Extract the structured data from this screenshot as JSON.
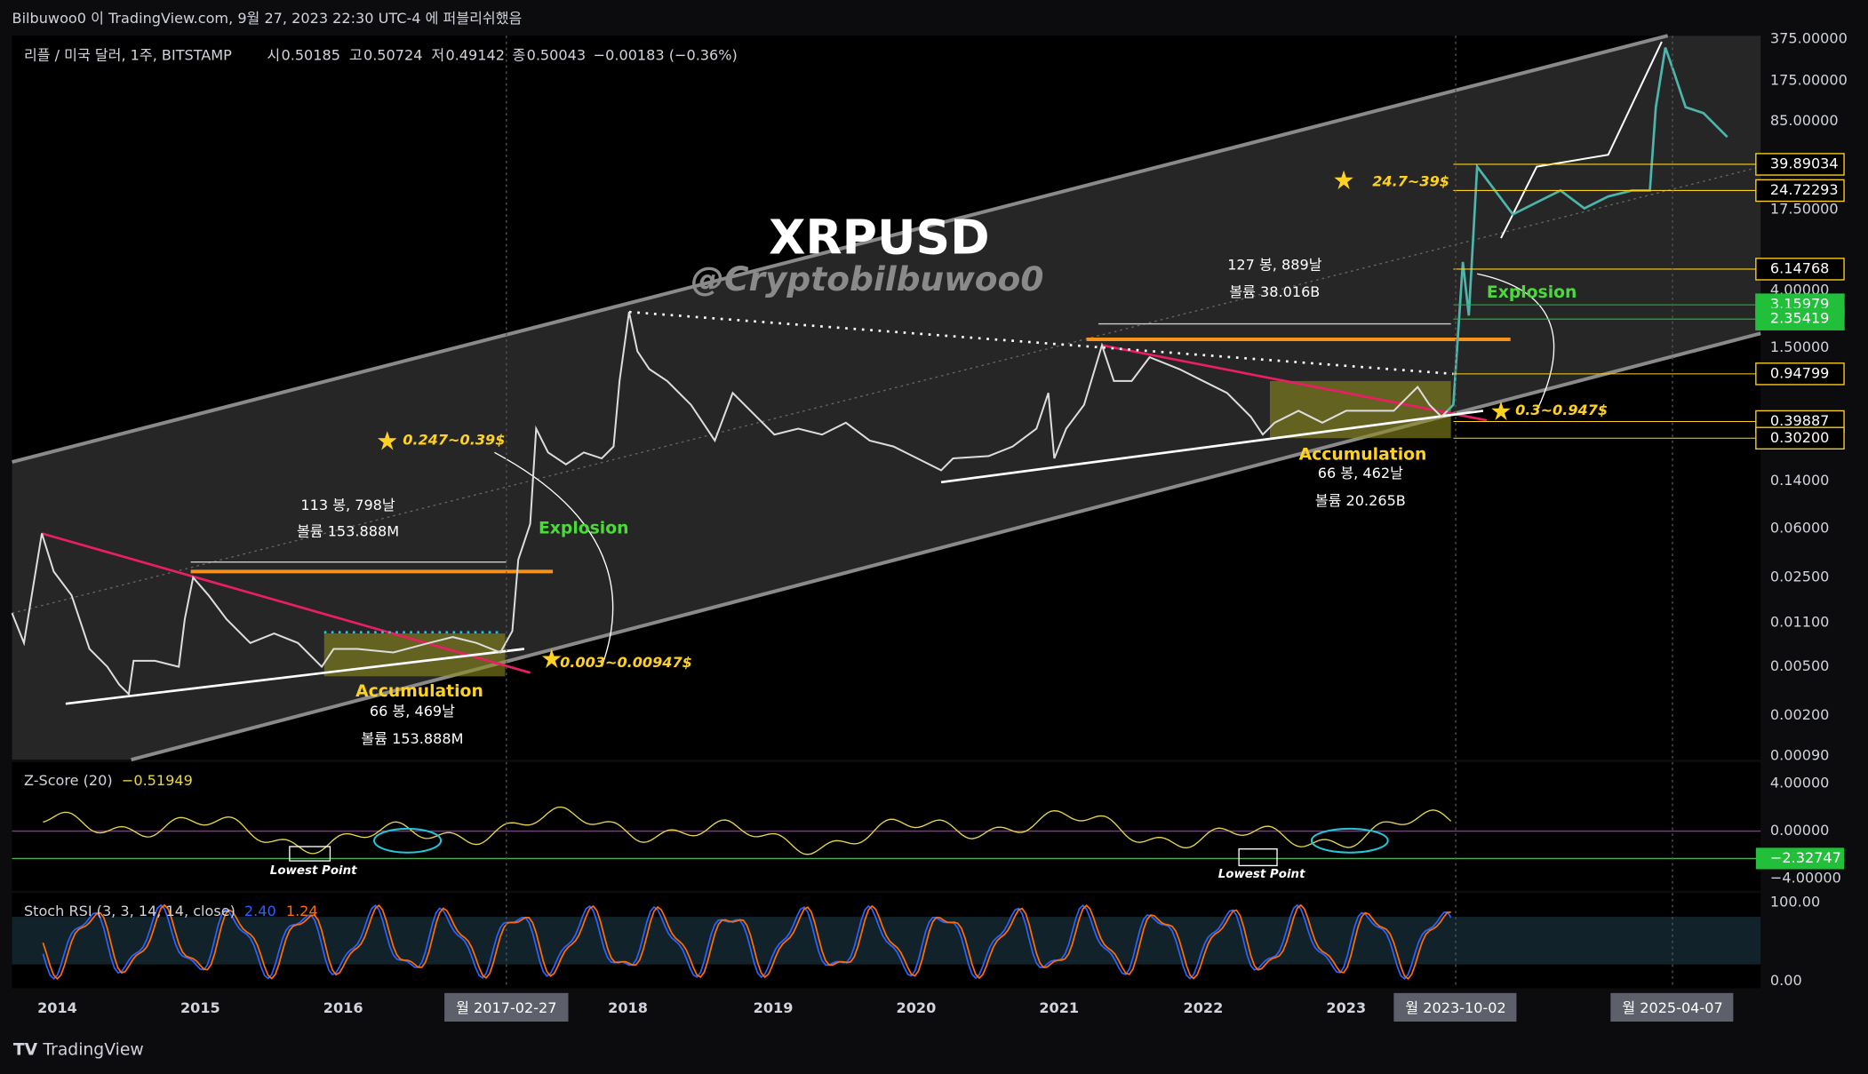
{
  "header": {
    "published": "Bilbuwoo0 이 TradingView.com, 9월 27, 2023 22:30 UTC-4 에 퍼블리쉬했음"
  },
  "legend": {
    "symbol": "리플 / 미국 달러, 1주, BITSTAMP",
    "open_label": "시",
    "open": "0.50185",
    "high_label": "고",
    "high": "0.50724",
    "low_label": "저",
    "low": "0.49142",
    "close_label": "종",
    "close": "0.50043",
    "change": "−0.00183 (−0.36%)"
  },
  "title": "XRPUSD",
  "watermark": "@Cryptobilbuwoo0",
  "price_axis": [
    "375.00000",
    "175.00000",
    "85.00000",
    "39.89034",
    "24.72293",
    "17.50000",
    "6.14768",
    "4.00000",
    "3.15979",
    "2.35419",
    "1.50000",
    "0.94799",
    "0.39887",
    "0.30200",
    "0.14000",
    "0.06000",
    "0.02500",
    "0.01100",
    "0.00500",
    "0.00200",
    "0.00090"
  ],
  "annotations": {
    "bars_2015": "113 봉, 798날",
    "volume_2015": "볼륨 153.888M",
    "explosion_2017": "Explosion",
    "target_2017": "0.247~0.39$",
    "accumulation_2016": "Accumulation",
    "acc_bars_2016": "66 봉, 469날",
    "acc_volume_2016": "볼륨 153.888M",
    "range_2016": "0.003~0.00947$",
    "bars_2021": "127 봉, 889날",
    "volume_2021": "볼륨 38.016B",
    "accumulation_2023": "Accumulation",
    "acc_bars_2023": "66 봉, 462날",
    "acc_volume_2023": "볼륨 20.265B",
    "explosion_2024": "Explosion",
    "target_2024": "24.7~39$",
    "range_2023": "0.3~0.947$"
  },
  "zscore": {
    "title": "Z-Score (20)",
    "value": "−0.51949",
    "axis": [
      "4.00000",
      "0.00000",
      "−2.32747",
      "−4.00000"
    ],
    "notes": [
      "Lowest Point",
      "Lowest Point"
    ]
  },
  "stoch_rsi": {
    "title": "Stoch RSI (3, 3, 14, 14, close)",
    "k": "2.40",
    "d": "1.24",
    "axis": [
      "100.00",
      "0.00"
    ]
  },
  "time_axis": {
    "years": [
      "2014",
      "2015",
      "2016",
      "2018",
      "2019",
      "2020",
      "2021",
      "2022",
      "2023"
    ],
    "markers": [
      "월 2017-02-27",
      "월 2023-10-02",
      "월 2025-04-07"
    ]
  },
  "footer": {
    "brand": "TradingView"
  }
}
